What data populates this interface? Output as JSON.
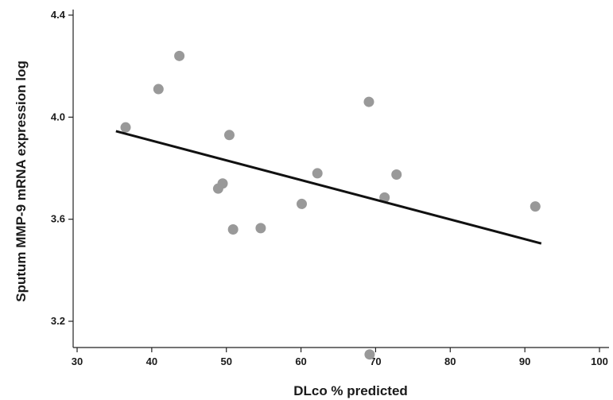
{
  "chart_data": {
    "type": "scatter",
    "title": "",
    "xlabel": "DLco % predicted",
    "ylabel": "Sputum MMP-9  mRNA expression log",
    "xlim": [
      30,
      100
    ],
    "ylim": [
      3.05,
      4.4
    ],
    "x_ticks": [
      30,
      40,
      50,
      60,
      70,
      80,
      90,
      100
    ],
    "x_tick_labels": [
      "30",
      "40",
      "50",
      "60",
      "70",
      "80",
      "90",
      "100"
    ],
    "y_ticks": [
      3.2,
      3.6,
      4.0,
      4.4
    ],
    "y_tick_labels": [
      "3.2",
      "3.6",
      "4.0",
      "4.4"
    ],
    "grid": false,
    "point_color": "#999999",
    "line_color": "#111111",
    "points": [
      {
        "x": 36.5,
        "y": 3.96
      },
      {
        "x": 40.9,
        "y": 4.11
      },
      {
        "x": 43.7,
        "y": 4.24
      },
      {
        "x": 48.9,
        "y": 3.72
      },
      {
        "x": 49.5,
        "y": 3.74
      },
      {
        "x": 50.4,
        "y": 3.93
      },
      {
        "x": 50.9,
        "y": 3.56
      },
      {
        "x": 54.6,
        "y": 3.565
      },
      {
        "x": 60.1,
        "y": 3.66
      },
      {
        "x": 62.2,
        "y": 3.78
      },
      {
        "x": 69.1,
        "y": 4.06
      },
      {
        "x": 71.2,
        "y": 3.685
      },
      {
        "x": 72.8,
        "y": 3.775
      },
      {
        "x": 91.4,
        "y": 3.65
      },
      {
        "x": 69.2,
        "y": 3.07
      }
    ],
    "regression_line": {
      "x1": 35.2,
      "y1": 3.945,
      "x2": 92.2,
      "y2": 3.505
    }
  }
}
